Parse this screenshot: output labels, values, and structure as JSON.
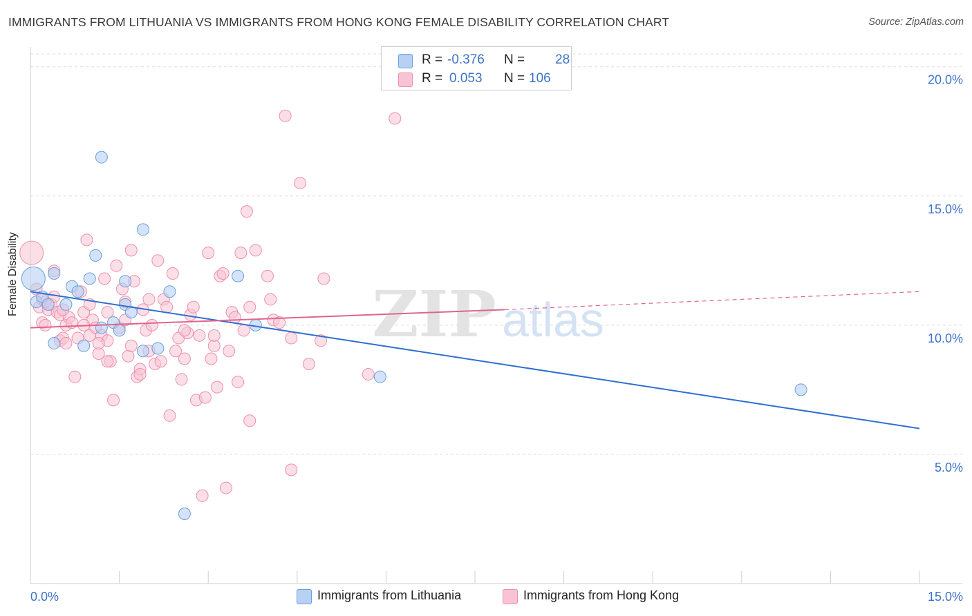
{
  "header": {
    "title": "IMMIGRANTS FROM LITHUANIA VS IMMIGRANTS FROM HONG KONG FEMALE DISABILITY CORRELATION CHART",
    "source": "Source: ZipAtlas.com"
  },
  "legend_box": {
    "rows": [
      {
        "r_label": "R =",
        "r_value": "-0.376",
        "n_label": "N =",
        "n_value": "28"
      },
      {
        "r_label": "R =",
        "r_value": "0.053",
        "n_label": "N =",
        "n_value": "106"
      }
    ]
  },
  "watermark": {
    "zip": "ZIP",
    "atlas": "atlas"
  },
  "colors": {
    "blue": "#6a9fe0",
    "blue_fill": "#b8d0f2",
    "blue_line": "#2f6fd0",
    "pink": "#ee8fae",
    "pink_fill": "#f8c4d4",
    "pink_line": "#e0648e",
    "tick_text": "#3d73c9"
  },
  "chart_data": {
    "type": "scatter",
    "title": "IMMIGRANTS FROM LITHUANIA VS IMMIGRANTS FROM HONG KONG FEMALE DISABILITY CORRELATION CHART",
    "xlabel": "",
    "ylabel": "Female Disability",
    "xlim": [
      0,
      15
    ],
    "ylim": [
      0,
      20.5
    ],
    "x_tick_labels": [
      "0.0%",
      "15.0%"
    ],
    "y_ticks": [
      5,
      10,
      15,
      20
    ],
    "y_tick_labels": [
      "5.0%",
      "10.0%",
      "15.0%",
      "20.0%"
    ],
    "grid": "horizontal dashed",
    "legend": "bottom-center",
    "series": [
      {
        "name": "Immigrants from Lithuania",
        "color": "blue",
        "r": -0.376,
        "n": 28,
        "trend": {
          "x": [
            0,
            15
          ],
          "y": [
            11.3,
            6.0
          ]
        },
        "points": [
          {
            "x": 0.05,
            "y": 11.8,
            "big": true
          },
          {
            "x": 0.1,
            "y": 10.9
          },
          {
            "x": 0.2,
            "y": 11.1
          },
          {
            "x": 0.3,
            "y": 10.8
          },
          {
            "x": 0.4,
            "y": 12.0
          },
          {
            "x": 0.4,
            "y": 9.3
          },
          {
            "x": 0.6,
            "y": 10.8
          },
          {
            "x": 0.7,
            "y": 11.5
          },
          {
            "x": 0.8,
            "y": 11.3
          },
          {
            "x": 0.9,
            "y": 9.2
          },
          {
            "x": 1.0,
            "y": 11.8
          },
          {
            "x": 1.1,
            "y": 12.7
          },
          {
            "x": 1.2,
            "y": 9.9
          },
          {
            "x": 1.2,
            "y": 16.5
          },
          {
            "x": 1.4,
            "y": 10.1
          },
          {
            "x": 1.5,
            "y": 9.8
          },
          {
            "x": 1.6,
            "y": 11.7
          },
          {
            "x": 1.6,
            "y": 10.8
          },
          {
            "x": 1.7,
            "y": 10.5
          },
          {
            "x": 1.9,
            "y": 9.0
          },
          {
            "x": 1.9,
            "y": 13.7
          },
          {
            "x": 2.15,
            "y": 9.1
          },
          {
            "x": 2.35,
            "y": 11.3
          },
          {
            "x": 2.6,
            "y": 2.7
          },
          {
            "x": 3.5,
            "y": 11.9
          },
          {
            "x": 3.8,
            "y": 10.0
          },
          {
            "x": 5.9,
            "y": 8.0
          },
          {
            "x": 13.0,
            "y": 7.5
          }
        ]
      },
      {
        "name": "Immigrants from Hong Kong",
        "color": "pink",
        "r": 0.053,
        "n": 106,
        "trend": {
          "x": [
            0,
            8.0
          ],
          "y": [
            9.9,
            10.6
          ]
        },
        "trend_dashed": {
          "x": [
            8.0,
            15
          ],
          "y": [
            10.6,
            11.3
          ]
        },
        "points": [
          {
            "x": 0.02,
            "y": 12.8,
            "big": true
          },
          {
            "x": 0.1,
            "y": 11.4
          },
          {
            "x": 0.15,
            "y": 10.7
          },
          {
            "x": 0.2,
            "y": 11.0
          },
          {
            "x": 0.2,
            "y": 10.1
          },
          {
            "x": 0.25,
            "y": 10.0
          },
          {
            "x": 0.3,
            "y": 10.6
          },
          {
            "x": 0.35,
            "y": 10.8
          },
          {
            "x": 0.4,
            "y": 12.1
          },
          {
            "x": 0.45,
            "y": 10.5
          },
          {
            "x": 0.5,
            "y": 9.4
          },
          {
            "x": 0.5,
            "y": 10.4
          },
          {
            "x": 0.55,
            "y": 9.5
          },
          {
            "x": 0.6,
            "y": 10.0
          },
          {
            "x": 0.65,
            "y": 10.3
          },
          {
            "x": 0.7,
            "y": 10.1
          },
          {
            "x": 0.75,
            "y": 8.0
          },
          {
            "x": 0.8,
            "y": 9.5
          },
          {
            "x": 0.85,
            "y": 11.3
          },
          {
            "x": 0.9,
            "y": 10.5
          },
          {
            "x": 0.95,
            "y": 13.3
          },
          {
            "x": 1.0,
            "y": 9.6
          },
          {
            "x": 1.0,
            "y": 10.8
          },
          {
            "x": 1.05,
            "y": 10.2
          },
          {
            "x": 1.1,
            "y": 9.9
          },
          {
            "x": 1.15,
            "y": 8.9
          },
          {
            "x": 1.2,
            "y": 9.6
          },
          {
            "x": 1.25,
            "y": 11.8
          },
          {
            "x": 1.3,
            "y": 9.4
          },
          {
            "x": 1.3,
            "y": 10.5
          },
          {
            "x": 1.35,
            "y": 8.6
          },
          {
            "x": 1.4,
            "y": 7.1
          },
          {
            "x": 1.45,
            "y": 12.3
          },
          {
            "x": 1.5,
            "y": 9.9
          },
          {
            "x": 1.55,
            "y": 11.4
          },
          {
            "x": 1.6,
            "y": 10.9
          },
          {
            "x": 1.65,
            "y": 8.8
          },
          {
            "x": 1.7,
            "y": 12.9
          },
          {
            "x": 1.7,
            "y": 9.2
          },
          {
            "x": 1.75,
            "y": 11.7
          },
          {
            "x": 1.8,
            "y": 8.0
          },
          {
            "x": 1.85,
            "y": 8.3
          },
          {
            "x": 1.9,
            "y": 10.6
          },
          {
            "x": 1.95,
            "y": 9.8
          },
          {
            "x": 2.0,
            "y": 11.0
          },
          {
            "x": 2.0,
            "y": 9.0
          },
          {
            "x": 2.05,
            "y": 10.0
          },
          {
            "x": 2.1,
            "y": 8.5
          },
          {
            "x": 2.15,
            "y": 12.5
          },
          {
            "x": 2.2,
            "y": 8.6
          },
          {
            "x": 2.25,
            "y": 11.0
          },
          {
            "x": 2.3,
            "y": 10.7
          },
          {
            "x": 2.35,
            "y": 6.5
          },
          {
            "x": 2.4,
            "y": 12.0
          },
          {
            "x": 2.45,
            "y": 9.0
          },
          {
            "x": 2.5,
            "y": 9.5
          },
          {
            "x": 2.55,
            "y": 7.9
          },
          {
            "x": 2.6,
            "y": 8.7
          },
          {
            "x": 2.65,
            "y": 9.7
          },
          {
            "x": 2.7,
            "y": 10.4
          },
          {
            "x": 2.75,
            "y": 10.7
          },
          {
            "x": 2.8,
            "y": 7.1
          },
          {
            "x": 2.85,
            "y": 9.6
          },
          {
            "x": 2.9,
            "y": 3.4
          },
          {
            "x": 2.95,
            "y": 7.2
          },
          {
            "x": 3.0,
            "y": 12.8
          },
          {
            "x": 3.05,
            "y": 8.7
          },
          {
            "x": 3.1,
            "y": 9.2
          },
          {
            "x": 3.15,
            "y": 7.6
          },
          {
            "x": 3.2,
            "y": 11.9
          },
          {
            "x": 3.25,
            "y": 12.0
          },
          {
            "x": 3.3,
            "y": 3.7
          },
          {
            "x": 3.35,
            "y": 9.0
          },
          {
            "x": 3.4,
            "y": 10.5
          },
          {
            "x": 3.45,
            "y": 10.3
          },
          {
            "x": 3.5,
            "y": 7.8
          },
          {
            "x": 3.55,
            "y": 12.8
          },
          {
            "x": 3.6,
            "y": 9.8
          },
          {
            "x": 3.65,
            "y": 14.4
          },
          {
            "x": 3.7,
            "y": 10.7
          },
          {
            "x": 3.7,
            "y": 6.3
          },
          {
            "x": 3.8,
            "y": 12.9
          },
          {
            "x": 4.0,
            "y": 11.9
          },
          {
            "x": 4.05,
            "y": 11.0
          },
          {
            "x": 4.1,
            "y": 10.2
          },
          {
            "x": 4.2,
            "y": 10.1
          },
          {
            "x": 4.3,
            "y": 18.1
          },
          {
            "x": 4.4,
            "y": 9.5
          },
          {
            "x": 4.4,
            "y": 4.4
          },
          {
            "x": 4.55,
            "y": 15.5
          },
          {
            "x": 4.7,
            "y": 8.5
          },
          {
            "x": 4.9,
            "y": 9.4
          },
          {
            "x": 4.95,
            "y": 11.8
          },
          {
            "x": 5.7,
            "y": 8.1
          },
          {
            "x": 6.15,
            "y": 18.0
          },
          {
            "x": 0.25,
            "y": 10.9
          },
          {
            "x": 0.55,
            "y": 10.6
          },
          {
            "x": 0.6,
            "y": 9.3
          },
          {
            "x": 0.9,
            "y": 10.0
          },
          {
            "x": 1.15,
            "y": 9.3
          },
          {
            "x": 1.3,
            "y": 8.6
          },
          {
            "x": 1.6,
            "y": 10.2
          },
          {
            "x": 1.85,
            "y": 8.1
          },
          {
            "x": 2.6,
            "y": 9.8
          },
          {
            "x": 3.1,
            "y": 9.6
          },
          {
            "x": 0.4,
            "y": 11.1
          }
        ]
      }
    ]
  }
}
